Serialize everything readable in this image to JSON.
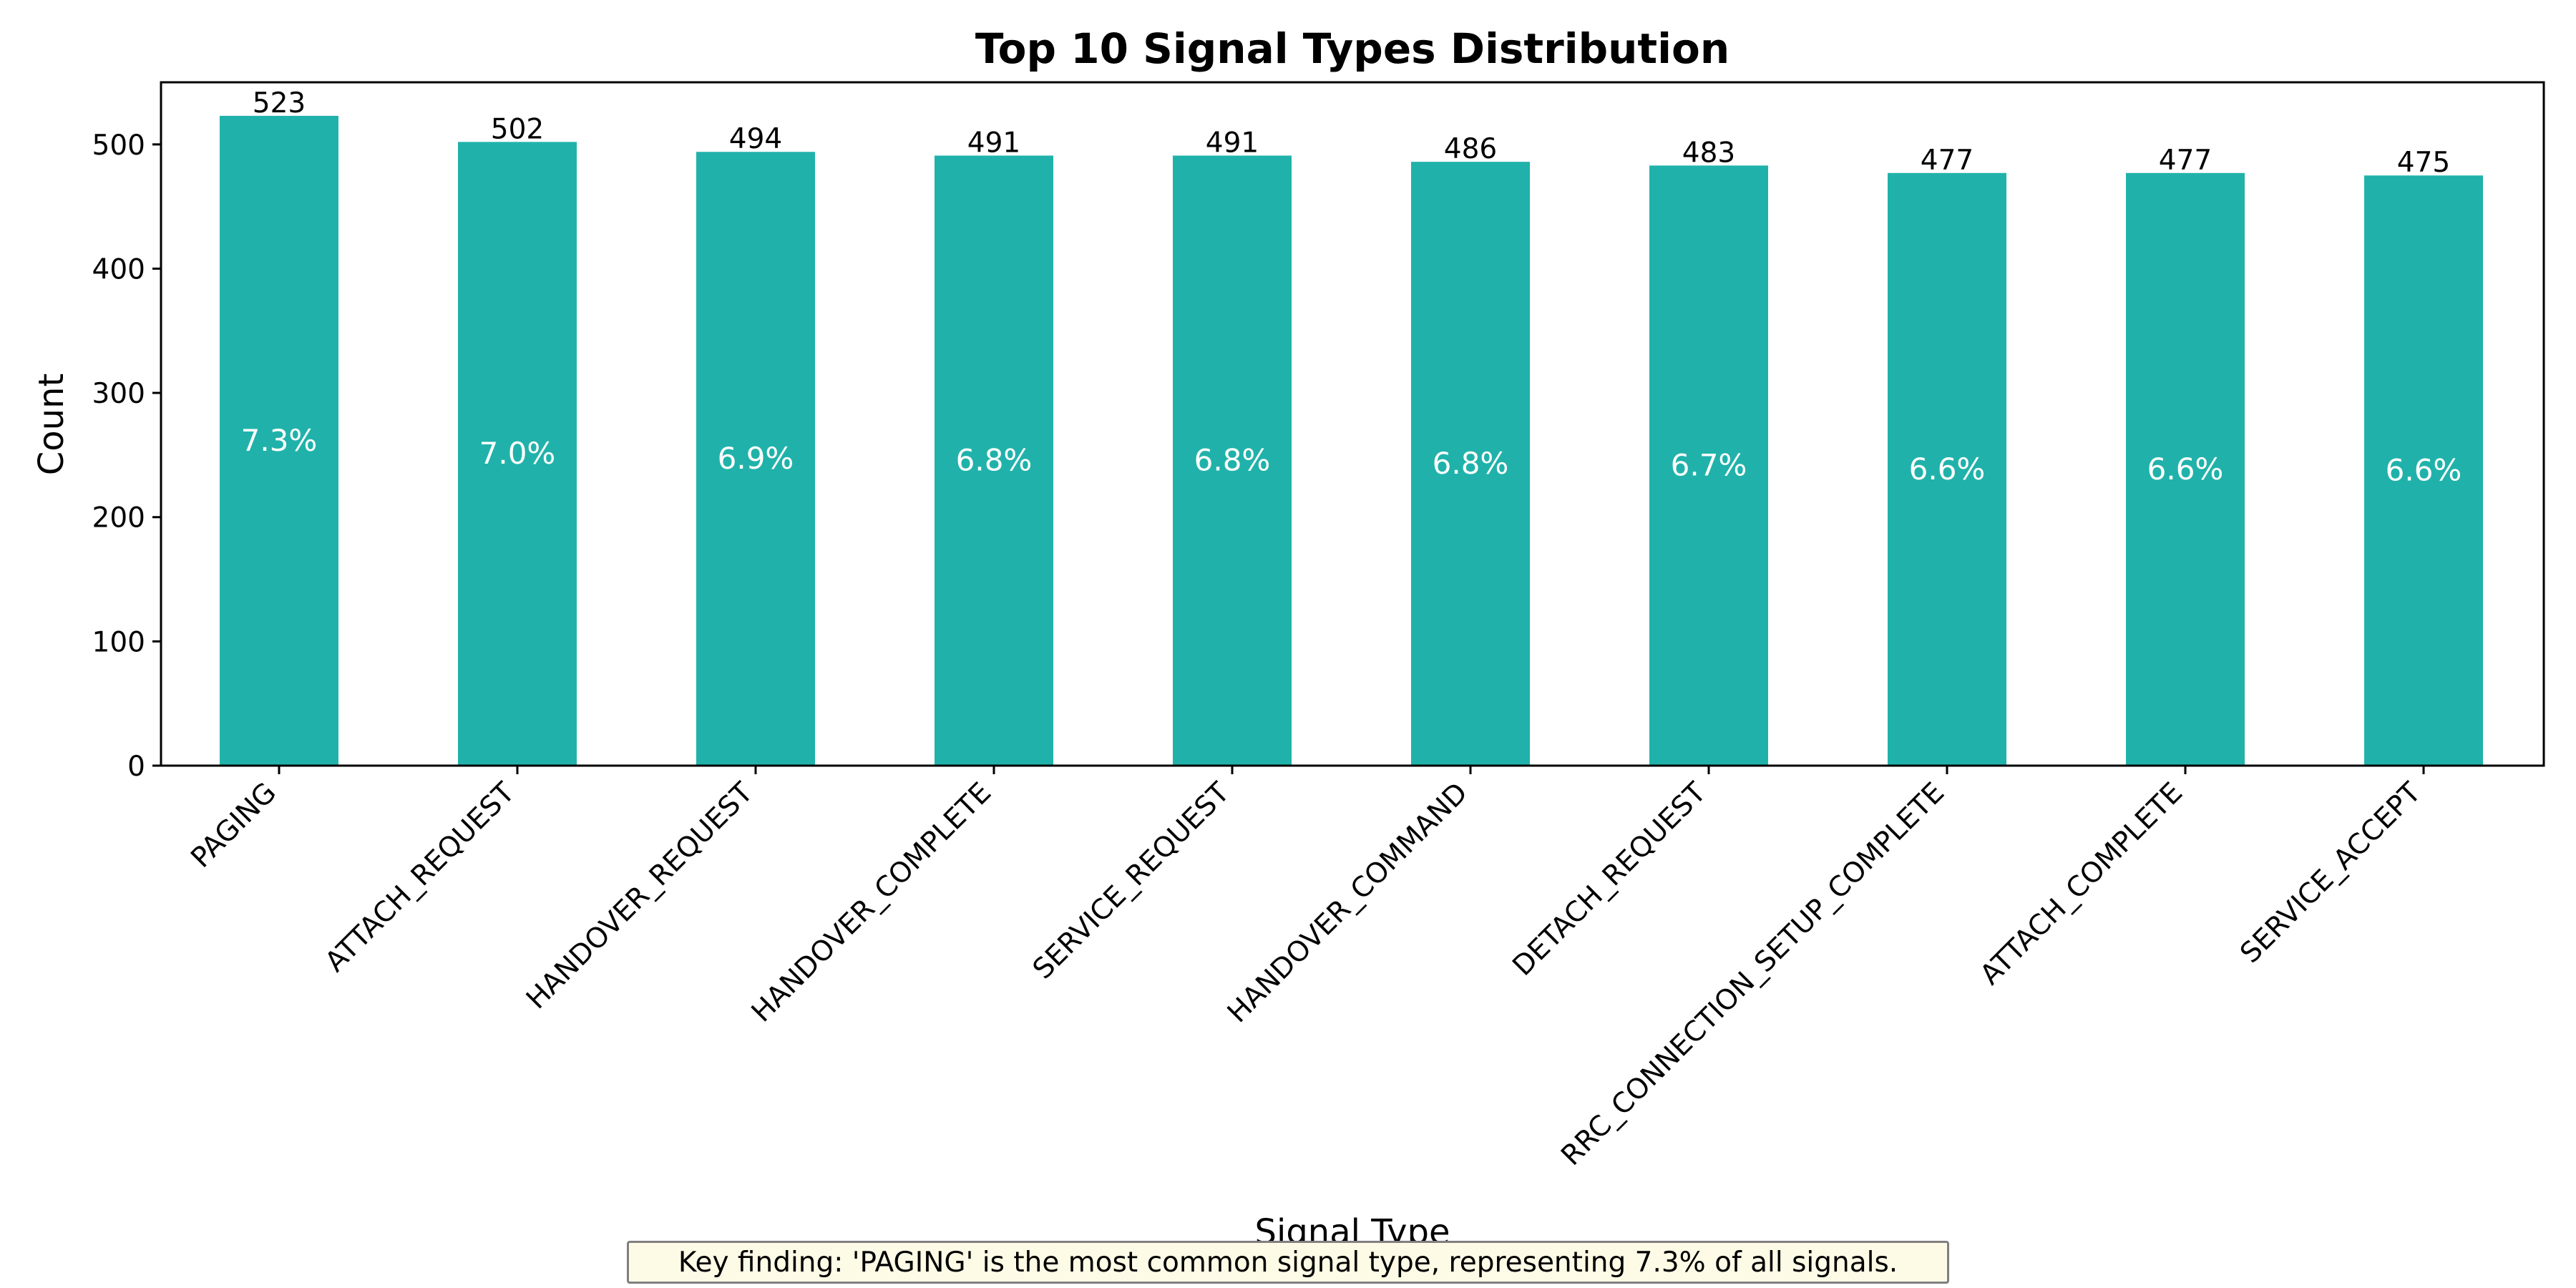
{
  "chart_data": {
    "type": "bar",
    "title": "Top 10 Signal Types Distribution",
    "xlabel": "Signal Type",
    "ylabel": "Count",
    "ylim": [
      0,
      550
    ],
    "yticks": [
      0,
      100,
      200,
      300,
      400,
      500
    ],
    "categories": [
      "PAGING",
      "ATTACH_REQUEST",
      "HANDOVER_REQUEST",
      "HANDOVER_COMPLETE",
      "SERVICE_REQUEST",
      "HANDOVER_COMMAND",
      "DETACH_REQUEST",
      "RRC_CONNECTION_SETUP_COMPLETE",
      "ATTACH_COMPLETE",
      "SERVICE_ACCEPT"
    ],
    "values": [
      523,
      502,
      494,
      491,
      491,
      486,
      483,
      477,
      477,
      475
    ],
    "percent_labels": [
      "7.3%",
      "7.0%",
      "6.9%",
      "6.8%",
      "6.8%",
      "6.8%",
      "6.7%",
      "6.6%",
      "6.6%",
      "6.6%"
    ],
    "bar_color": "#20b2aa",
    "grid": false,
    "legend": "none"
  },
  "annotation": {
    "text": "Key finding: 'PAGING' is the most common signal type, representing 7.3% of all signals.",
    "background": "#fdfbe6"
  }
}
